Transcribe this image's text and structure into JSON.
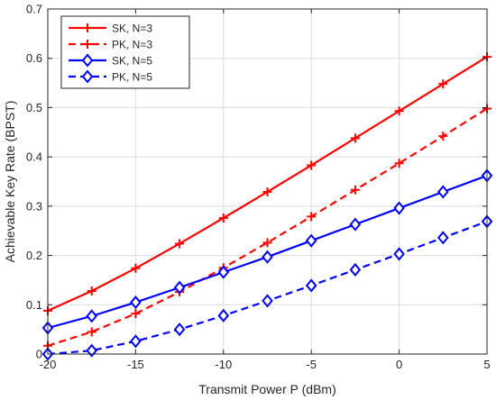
{
  "chart_data": {
    "type": "line",
    "title": "",
    "xlabel": "Transmit Power P (dBm)",
    "ylabel": "Achievable Key Rate (BPST)",
    "xlim": [
      -20,
      5
    ],
    "ylim": [
      0,
      0.7
    ],
    "xticks": [
      -20,
      -15,
      -10,
      -5,
      0,
      5
    ],
    "yticks": [
      0,
      0.1,
      0.2,
      0.3,
      0.4,
      0.5,
      0.6,
      0.7
    ],
    "xtick_labels": [
      "-20",
      "-15",
      "-10",
      "-5",
      "0",
      "5"
    ],
    "ytick_labels": [
      "0",
      "0.1",
      "0.2",
      "0.3",
      "0.4",
      "0.5",
      "0.6",
      "0.7"
    ],
    "grid": true,
    "legend_position": "top-left",
    "x": [
      -20,
      -17.5,
      -15,
      -12.5,
      -10,
      -7.5,
      -5,
      -2.5,
      0,
      2.5,
      5
    ],
    "series": [
      {
        "name": "SK, N=3",
        "color": "#ff0000",
        "line": "solid",
        "marker": "plus",
        "values": [
          0.088,
          0.128,
          0.174,
          0.224,
          0.276,
          0.329,
          0.383,
          0.438,
          0.493,
          0.548,
          0.603
        ]
      },
      {
        "name": "PK, N=3",
        "color": "#ff0000",
        "line": "dashed",
        "marker": "plus",
        "values": [
          0.017,
          0.045,
          0.082,
          0.126,
          0.175,
          0.226,
          0.279,
          0.333,
          0.387,
          0.442,
          0.498
        ]
      },
      {
        "name": "SK, N=5",
        "color": "#0000ff",
        "line": "solid",
        "marker": "diamond",
        "values": [
          0.053,
          0.077,
          0.105,
          0.135,
          0.166,
          0.197,
          0.23,
          0.263,
          0.296,
          0.329,
          0.362
        ]
      },
      {
        "name": "PK, N=5",
        "color": "#0000ff",
        "line": "dashed",
        "marker": "diamond",
        "values": [
          0.0,
          0.007,
          0.026,
          0.05,
          0.078,
          0.108,
          0.139,
          0.171,
          0.203,
          0.236,
          0.269
        ]
      }
    ]
  }
}
